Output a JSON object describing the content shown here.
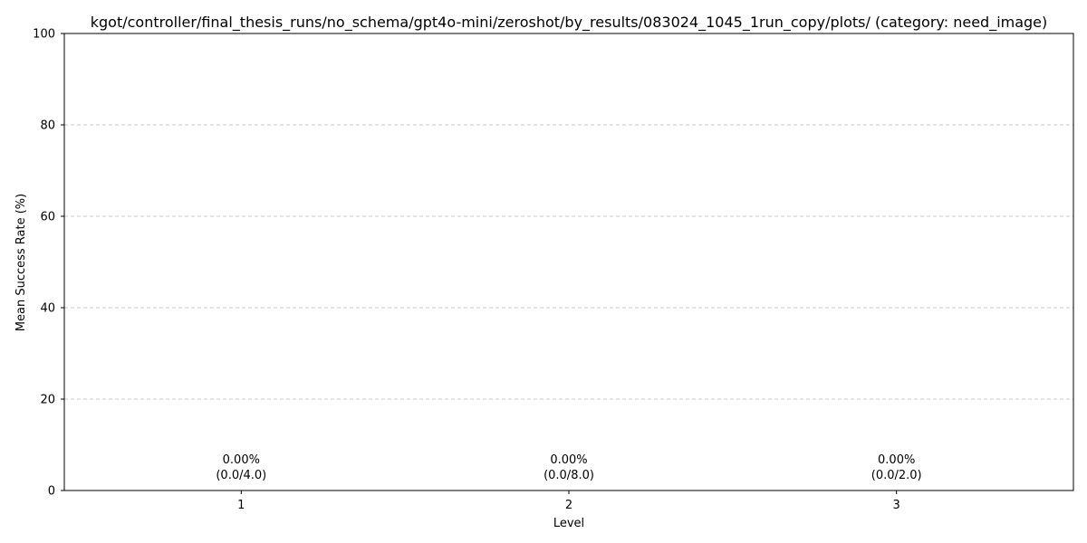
{
  "chart_data": {
    "type": "bar",
    "title": "kgot/controller/final_thesis_runs/no_schema/gpt4o-mini/zeroshot/by_results/083024_1045_1run_copy/plots/ (category: need_image)",
    "xlabel": "Level",
    "ylabel": "Mean Success Rate (%)",
    "categories": [
      "1",
      "2",
      "3"
    ],
    "values": [
      0.0,
      0.0,
      0.0
    ],
    "bar_labels": [
      [
        "0.00%",
        "(0.0/4.0)"
      ],
      [
        "0.00%",
        "(0.0/8.0)"
      ],
      [
        "0.00%",
        "(0.0/2.0)"
      ]
    ],
    "ylim": [
      0,
      100
    ],
    "yticks": [
      0,
      20,
      40,
      60,
      80,
      100
    ],
    "grid": "y-dashed",
    "colors": {
      "bar": "#5b8fc9",
      "grid": "#c8c8c8",
      "axis": "#000000"
    }
  }
}
